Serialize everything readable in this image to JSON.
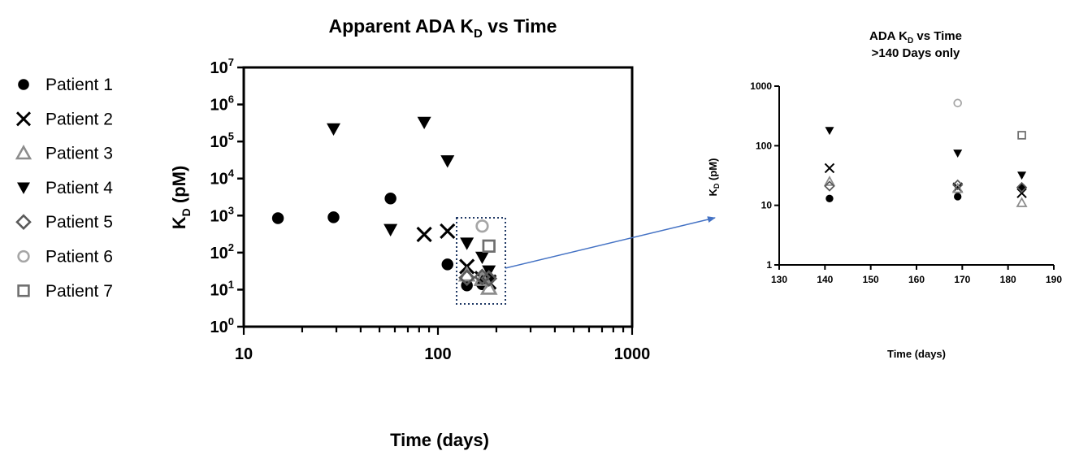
{
  "legend": [
    {
      "name": "Patient 1",
      "symbol": "filled-circle",
      "color": "#000000"
    },
    {
      "name": "Patient 2",
      "symbol": "x-cross",
      "color": "#000000"
    },
    {
      "name": "Patient 3",
      "symbol": "open-triangle-up",
      "color": "#8c8c8c"
    },
    {
      "name": "Patient 4",
      "symbol": "filled-triangle-down",
      "color": "#000000"
    },
    {
      "name": "Patient 5",
      "symbol": "open-diamond",
      "color": "#5a5a5a"
    },
    {
      "name": "Patient 6",
      "symbol": "open-circle",
      "color": "#a6a6a6"
    },
    {
      "name": "Patient 7",
      "symbol": "open-square",
      "color": "#6e6e6e"
    }
  ],
  "colors": {
    "axis": "#000000",
    "zoom_box": "#1f3864",
    "arrow": "#4472c4"
  },
  "chart_data": [
    {
      "type": "scatter",
      "title": "Apparent ADA K",
      "title_sub": "D",
      "title_tail": " vs Time",
      "xlabel": "Time (days)",
      "ylabel": "K",
      "ylabel_sub": "D",
      "ylabel_tail": " (pM)",
      "xscale": "log",
      "yscale": "log",
      "xlim": [
        10,
        1000
      ],
      "ylim": [
        1,
        10000000
      ],
      "xticks": [
        "10",
        "100",
        "1000"
      ],
      "yticks": [
        {
          "base": "10",
          "exp": "0"
        },
        {
          "base": "10",
          "exp": "1"
        },
        {
          "base": "10",
          "exp": "2"
        },
        {
          "base": "10",
          "exp": "3"
        },
        {
          "base": "10",
          "exp": "4"
        },
        {
          "base": "10",
          "exp": "5"
        },
        {
          "base": "10",
          "exp": "6"
        },
        {
          "base": "10",
          "exp": "7"
        }
      ],
      "grid": false,
      "legend": "left",
      "series": [
        {
          "name": "Patient 1",
          "points": [
            [
              15,
              850
            ],
            [
              29,
              900
            ],
            [
              57,
              2900
            ],
            [
              112,
              48
            ],
            [
              141,
              13
            ],
            [
              169,
              14
            ],
            [
              183,
              20
            ]
          ]
        },
        {
          "name": "Patient 2",
          "points": [
            [
              85,
              310
            ],
            [
              112,
              380
            ],
            [
              141,
              42
            ],
            [
              169,
              20
            ],
            [
              183,
              16
            ]
          ]
        },
        {
          "name": "Patient 3",
          "points": [
            [
              141,
              25
            ],
            [
              169,
              19
            ],
            [
              183,
              11
            ]
          ]
        },
        {
          "name": "Patient 4",
          "points": [
            [
              29,
              220000
            ],
            [
              57,
              420
            ],
            [
              85,
              330000
            ],
            [
              112,
              30000
            ],
            [
              141,
              180
            ],
            [
              169,
              75
            ],
            [
              183,
              32
            ]
          ]
        },
        {
          "name": "Patient 5",
          "points": [
            [
              141,
              21
            ],
            [
              169,
              22
            ],
            [
              183,
              20
            ]
          ]
        },
        {
          "name": "Patient 6",
          "points": [
            [
              169,
              520
            ]
          ]
        },
        {
          "name": "Patient 7",
          "points": [
            [
              183,
              150
            ]
          ]
        }
      ]
    },
    {
      "type": "scatter",
      "title": "ADA K",
      "title_sub": "D",
      "title_tail": " vs Time",
      "title_line2": ">140 Days only",
      "xlabel": "Time (days)",
      "ylabel": "K",
      "ylabel_sub": "D",
      "ylabel_tail": " (pM)",
      "xscale": "linear",
      "yscale": "log",
      "xlim": [
        130,
        190
      ],
      "ylim": [
        1,
        1000
      ],
      "xticks": [
        "130",
        "140",
        "150",
        "160",
        "170",
        "180",
        "190"
      ],
      "yticks": [
        "1",
        "10",
        "100",
        "1000"
      ],
      "grid": false,
      "series": [
        {
          "name": "Patient 1",
          "points": [
            [
              141,
              13
            ],
            [
              169,
              14
            ],
            [
              183,
              20
            ]
          ]
        },
        {
          "name": "Patient 2",
          "points": [
            [
              141,
              42
            ],
            [
              169,
              20
            ],
            [
              183,
              16
            ]
          ]
        },
        {
          "name": "Patient 3",
          "points": [
            [
              141,
              25
            ],
            [
              169,
              19
            ],
            [
              183,
              11
            ]
          ]
        },
        {
          "name": "Patient 4",
          "points": [
            [
              141,
              180
            ],
            [
              169,
              75
            ],
            [
              183,
              32
            ]
          ]
        },
        {
          "name": "Patient 5",
          "points": [
            [
              141,
              21
            ],
            [
              169,
              22
            ],
            [
              183,
              20
            ]
          ]
        },
        {
          "name": "Patient 6",
          "points": [
            [
              169,
              520
            ]
          ]
        },
        {
          "name": "Patient 7",
          "points": [
            [
              183,
              150
            ]
          ]
        }
      ]
    }
  ]
}
